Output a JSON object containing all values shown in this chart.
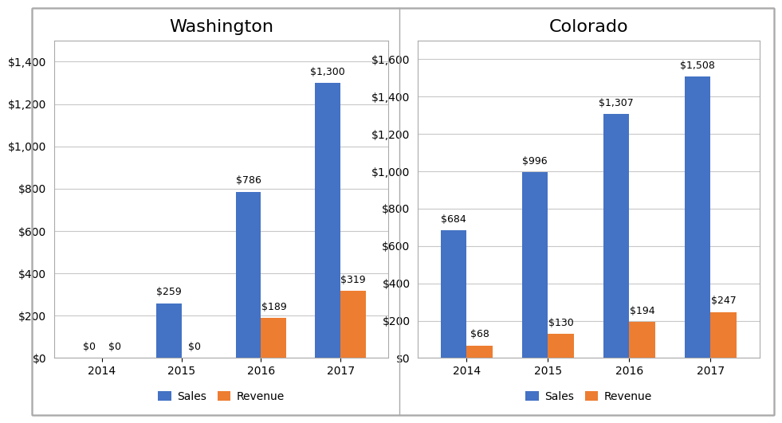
{
  "washington": {
    "title": "Washington",
    "years": [
      "2014",
      "2015",
      "2016",
      "2017"
    ],
    "sales": [
      0,
      259,
      786,
      1300
    ],
    "revenue": [
      0,
      0,
      189,
      319
    ],
    "ylim": [
      0,
      1500
    ],
    "yticks": [
      0,
      200,
      400,
      600,
      800,
      1000,
      1200,
      1400
    ]
  },
  "colorado": {
    "title": "Colorado",
    "years": [
      "2014",
      "2015",
      "2016",
      "2017"
    ],
    "sales": [
      684,
      996,
      1307,
      1508
    ],
    "revenue": [
      68,
      130,
      194,
      247
    ],
    "ylim": [
      0,
      1700
    ],
    "yticks": [
      0,
      200,
      400,
      600,
      800,
      1000,
      1200,
      1400,
      1600
    ]
  },
  "bar_color_sales": "#4472C4",
  "bar_color_revenue": "#ED7D31",
  "background_color": "#FFFFFF",
  "panel_background": "#FFFFFF",
  "border_color": "#AAAAAA",
  "grid_color": "#C8C8C8",
  "title_fontsize": 16,
  "tick_fontsize": 10,
  "label_fontsize": 10,
  "annotation_fontsize": 9,
  "bar_width": 0.32,
  "legend_labels": [
    "Sales",
    "Revenue"
  ]
}
